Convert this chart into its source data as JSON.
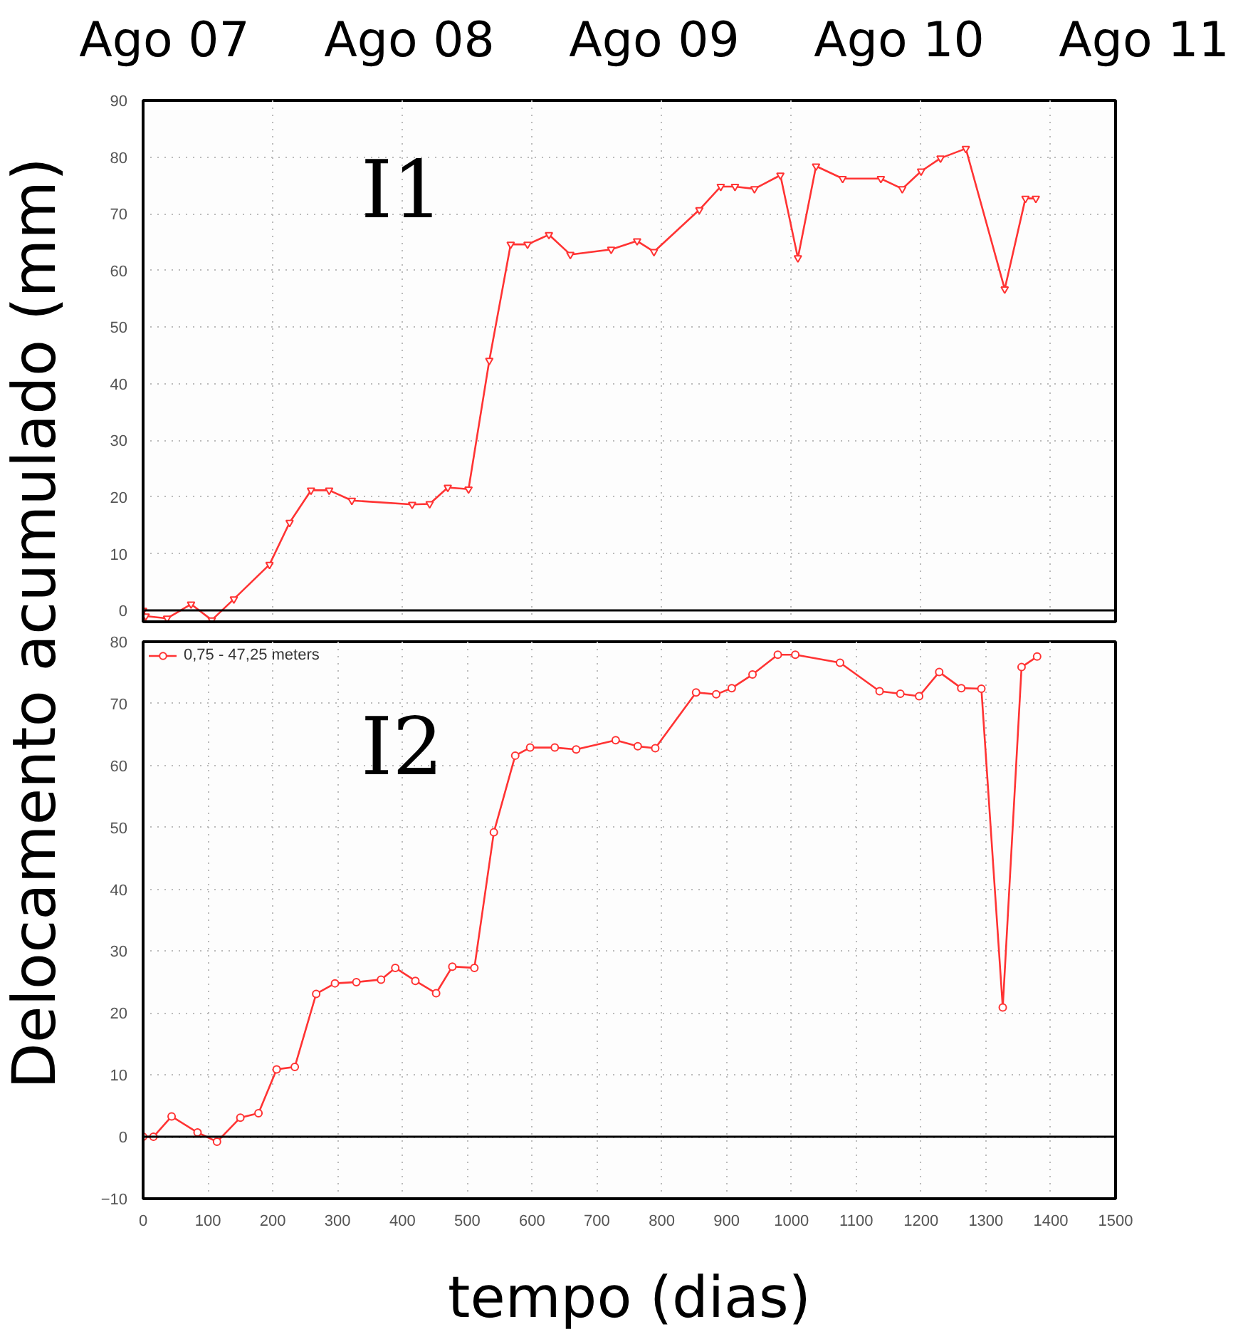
{
  "chart_data": [
    {
      "type": "line",
      "title": "I1",
      "ylabel": "Delocamento acumulado (mm)",
      "annotations": [
        "Ago 07",
        "Ago 08",
        "Ago 09",
        "Ago 10",
        "Ago 11"
      ],
      "xlim": [
        0,
        1500
      ],
      "xticks": [
        0,
        200,
        400,
        600,
        800,
        1000,
        1200,
        1400
      ],
      "ylim": [
        -2,
        90
      ],
      "yticks": [
        0,
        10,
        20,
        30,
        40,
        50,
        60,
        70,
        80,
        90
      ],
      "tick_labels": "y",
      "grid": true,
      "marker": "triangle",
      "line_style": "solid",
      "ref_lines": [
        {
          "axis": "y",
          "value": 0,
          "color": "#000000"
        }
      ],
      "series": [
        {
          "color": "#ff3333",
          "x": [
            0,
            4,
            37,
            74,
            106,
            140,
            195,
            226,
            259,
            287,
            322,
            415,
            442,
            470,
            502,
            534,
            567,
            593,
            626,
            659,
            722,
            762,
            788,
            858,
            891,
            913,
            943,
            983,
            1010,
            1038,
            1079,
            1138,
            1171,
            1200,
            1230,
            1269,
            1329,
            1361,
            1377
          ],
          "values": [
            0,
            -1,
            -1.4,
            1.1,
            -1.7,
            2,
            8.1,
            15.5,
            21.2,
            21.2,
            19.4,
            18.7,
            18.8,
            21.7,
            21.4,
            44.1,
            64.6,
            64.6,
            66.3,
            62.8,
            63.7,
            65.2,
            63.3,
            70.7,
            74.8,
            74.8,
            74.4,
            76.8,
            62.2,
            78.4,
            76.2,
            76.2,
            74.4,
            77.5,
            79.8,
            81.5,
            56.7,
            72.7,
            72.7
          ]
        }
      ]
    },
    {
      "type": "line",
      "title": "I2",
      "xlabel": "tempo (dias)",
      "xlim": [
        0,
        1500
      ],
      "xticks": [
        0,
        100,
        200,
        300,
        400,
        500,
        600,
        700,
        800,
        900,
        1000,
        1100,
        1200,
        1300,
        1400,
        1500
      ],
      "ylim": [
        -10,
        80
      ],
      "yticks": [
        -10,
        0,
        10,
        20,
        30,
        40,
        50,
        60,
        70,
        80
      ],
      "grid": true,
      "legend": "top left",
      "marker": "circle",
      "line_style": "solid",
      "ref_lines": [
        {
          "axis": "y",
          "value": 0,
          "color": "#000000"
        }
      ],
      "series": [
        {
          "name": "0,75 - 47,25 meters",
          "color": "#ff3333",
          "x": [
            0,
            16,
            44,
            84,
            114,
            150,
            178,
            206,
            234,
            267,
            296,
            329,
            367,
            389,
            420,
            452,
            477,
            511,
            541,
            574,
            597,
            635,
            668,
            729,
            763,
            790,
            853,
            884,
            908,
            940,
            979,
            1006,
            1075,
            1136,
            1168,
            1197,
            1228,
            1262,
            1293,
            1326,
            1355,
            1379
          ],
          "values": [
            0,
            0,
            3.3,
            0.7,
            -0.8,
            3.1,
            3.8,
            10.9,
            11.3,
            23.1,
            24.8,
            25.0,
            25.4,
            27.3,
            25.2,
            23.2,
            27.5,
            27.3,
            49.2,
            61.6,
            62.9,
            62.9,
            62.6,
            64.1,
            63.1,
            62.8,
            71.8,
            71.5,
            72.5,
            74.7,
            77.9,
            77.9,
            76.6,
            72.0,
            71.6,
            71.2,
            75.1,
            72.5,
            72.4,
            20.9,
            75.9,
            77.6
          ]
        }
      ]
    }
  ]
}
